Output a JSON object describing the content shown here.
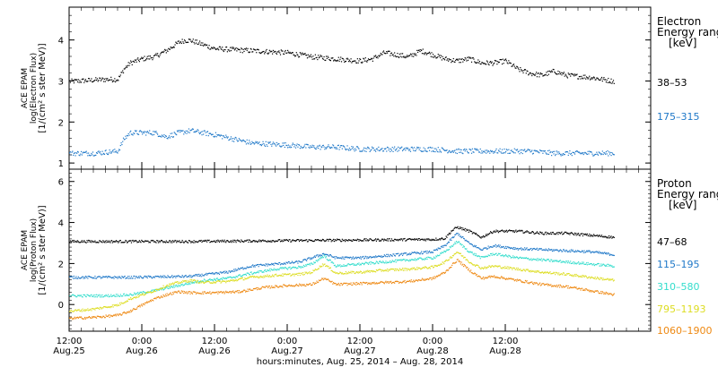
{
  "chart_data": [
    {
      "type": "scatter",
      "panel": "electron",
      "ylabel_lines": [
        "ACE EPAM",
        "log(Electron Flux)",
        "[1/(cm² s ster MeV)]"
      ],
      "ylim": [
        0.85,
        4.8
      ],
      "yticks": [
        1,
        2,
        3,
        4
      ],
      "legend_title_lines": [
        "Electron",
        "Energy ranges",
        "[keV]"
      ],
      "series": [
        {
          "name": "38–53",
          "color": "#000000",
          "points": [
            [
              0,
              3.0
            ],
            [
              6,
              3.05
            ],
            [
              8,
              3.05
            ],
            [
              9,
              3.3
            ],
            [
              10,
              3.45
            ],
            [
              12,
              3.55
            ],
            [
              14,
              3.6
            ],
            [
              16,
              3.75
            ],
            [
              18,
              3.95
            ],
            [
              19,
              4.0
            ],
            [
              20,
              4.0
            ],
            [
              24,
              3.8
            ],
            [
              30,
              3.75
            ],
            [
              36,
              3.7
            ],
            [
              40,
              3.6
            ],
            [
              44,
              3.55
            ],
            [
              48,
              3.5
            ],
            [
              50,
              3.55
            ],
            [
              52,
              3.7
            ],
            [
              54,
              3.65
            ],
            [
              56,
              3.6
            ],
            [
              58,
              3.75
            ],
            [
              60,
              3.65
            ],
            [
              62,
              3.55
            ],
            [
              64,
              3.5
            ],
            [
              66,
              3.55
            ],
            [
              68,
              3.45
            ],
            [
              70,
              3.45
            ],
            [
              72,
              3.5
            ],
            [
              74,
              3.3
            ],
            [
              76,
              3.2
            ],
            [
              78,
              3.15
            ],
            [
              80,
              3.25
            ],
            [
              82,
              3.15
            ],
            [
              86,
              3.1
            ],
            [
              90,
              3.0
            ]
          ]
        },
        {
          "name": "175–315",
          "color": "#1f78c8",
          "points": [
            [
              0,
              1.25
            ],
            [
              4,
              1.25
            ],
            [
              8,
              1.3
            ],
            [
              9,
              1.6
            ],
            [
              10,
              1.75
            ],
            [
              14,
              1.75
            ],
            [
              16,
              1.65
            ],
            [
              18,
              1.75
            ],
            [
              20,
              1.8
            ],
            [
              24,
              1.7
            ],
            [
              30,
              1.5
            ],
            [
              36,
              1.45
            ],
            [
              40,
              1.4
            ],
            [
              44,
              1.4
            ],
            [
              48,
              1.35
            ],
            [
              52,
              1.35
            ],
            [
              56,
              1.35
            ],
            [
              60,
              1.35
            ],
            [
              64,
              1.3
            ],
            [
              68,
              1.3
            ],
            [
              72,
              1.3
            ],
            [
              76,
              1.3
            ],
            [
              80,
              1.25
            ],
            [
              84,
              1.25
            ],
            [
              90,
              1.25
            ]
          ]
        }
      ]
    },
    {
      "type": "scatter",
      "panel": "proton",
      "ylabel_lines": [
        "ACE EPAM",
        "log(Proton Flux)",
        "[1/(cm² s ster MeV)]"
      ],
      "ylim": [
        -1.3,
        6.6
      ],
      "yticks": [
        0,
        2,
        4,
        6
      ],
      "legend_title_lines": [
        "Proton",
        "Energy ranges",
        "[keV]"
      ],
      "series": [
        {
          "name": "47–68",
          "color": "#000000",
          "points": [
            [
              0,
              3.1
            ],
            [
              20,
              3.1
            ],
            [
              40,
              3.15
            ],
            [
              60,
              3.2
            ],
            [
              62,
              3.25
            ],
            [
              63,
              3.6
            ],
            [
              64,
              3.8
            ],
            [
              66,
              3.6
            ],
            [
              68,
              3.3
            ],
            [
              70,
              3.6
            ],
            [
              74,
              3.6
            ],
            [
              78,
              3.5
            ],
            [
              82,
              3.5
            ],
            [
              86,
              3.4
            ],
            [
              90,
              3.3
            ]
          ]
        },
        {
          "name": "115–195",
          "color": "#1f78c8",
          "points": [
            [
              0,
              1.35
            ],
            [
              10,
              1.35
            ],
            [
              20,
              1.4
            ],
            [
              26,
              1.6
            ],
            [
              30,
              1.9
            ],
            [
              34,
              2.0
            ],
            [
              38,
              2.1
            ],
            [
              40,
              2.3
            ],
            [
              42,
              2.5
            ],
            [
              44,
              2.3
            ],
            [
              48,
              2.3
            ],
            [
              52,
              2.4
            ],
            [
              56,
              2.5
            ],
            [
              60,
              2.6
            ],
            [
              62,
              2.9
            ],
            [
              64,
              3.5
            ],
            [
              66,
              3.0
            ],
            [
              68,
              2.7
            ],
            [
              70,
              2.9
            ],
            [
              74,
              2.75
            ],
            [
              78,
              2.7
            ],
            [
              82,
              2.65
            ],
            [
              86,
              2.6
            ],
            [
              90,
              2.45
            ]
          ]
        },
        {
          "name": "310–580",
          "color": "#33ddcc",
          "points": [
            [
              0,
              0.45
            ],
            [
              6,
              0.45
            ],
            [
              10,
              0.5
            ],
            [
              14,
              0.7
            ],
            [
              18,
              0.95
            ],
            [
              22,
              1.2
            ],
            [
              26,
              1.3
            ],
            [
              30,
              1.55
            ],
            [
              34,
              1.75
            ],
            [
              38,
              1.85
            ],
            [
              40,
              2.0
            ],
            [
              42,
              2.4
            ],
            [
              44,
              1.9
            ],
            [
              48,
              2.0
            ],
            [
              52,
              2.1
            ],
            [
              56,
              2.2
            ],
            [
              60,
              2.3
            ],
            [
              62,
              2.6
            ],
            [
              64,
              3.1
            ],
            [
              66,
              2.6
            ],
            [
              68,
              2.3
            ],
            [
              70,
              2.5
            ],
            [
              74,
              2.3
            ],
            [
              78,
              2.2
            ],
            [
              82,
              2.1
            ],
            [
              86,
              2.0
            ],
            [
              90,
              1.9
            ]
          ]
        },
        {
          "name": "795–1193",
          "color": "#dddd22",
          "points": [
            [
              0,
              -0.3
            ],
            [
              4,
              -0.2
            ],
            [
              8,
              0.0
            ],
            [
              10,
              0.3
            ],
            [
              12,
              0.5
            ],
            [
              14,
              0.7
            ],
            [
              16,
              0.95
            ],
            [
              18,
              1.1
            ],
            [
              20,
              1.2
            ],
            [
              22,
              1.1
            ],
            [
              26,
              1.15
            ],
            [
              30,
              1.35
            ],
            [
              34,
              1.45
            ],
            [
              38,
              1.5
            ],
            [
              40,
              1.6
            ],
            [
              42,
              2.0
            ],
            [
              44,
              1.55
            ],
            [
              48,
              1.6
            ],
            [
              52,
              1.7
            ],
            [
              56,
              1.75
            ],
            [
              60,
              1.85
            ],
            [
              62,
              2.1
            ],
            [
              64,
              2.6
            ],
            [
              66,
              2.1
            ],
            [
              68,
              1.8
            ],
            [
              70,
              1.9
            ],
            [
              74,
              1.75
            ],
            [
              78,
              1.6
            ],
            [
              82,
              1.5
            ],
            [
              86,
              1.35
            ],
            [
              90,
              1.2
            ]
          ]
        },
        {
          "name": "1060–1900",
          "color": "#ee8811",
          "points": [
            [
              0,
              -0.65
            ],
            [
              4,
              -0.6
            ],
            [
              8,
              -0.5
            ],
            [
              10,
              -0.3
            ],
            [
              12,
              0.0
            ],
            [
              14,
              0.3
            ],
            [
              16,
              0.5
            ],
            [
              18,
              0.65
            ],
            [
              20,
              0.6
            ],
            [
              24,
              0.6
            ],
            [
              28,
              0.65
            ],
            [
              32,
              0.85
            ],
            [
              36,
              0.95
            ],
            [
              40,
              1.0
            ],
            [
              42,
              1.3
            ],
            [
              44,
              1.0
            ],
            [
              48,
              1.05
            ],
            [
              52,
              1.1
            ],
            [
              56,
              1.15
            ],
            [
              60,
              1.3
            ],
            [
              62,
              1.6
            ],
            [
              64,
              2.2
            ],
            [
              66,
              1.7
            ],
            [
              68,
              1.3
            ],
            [
              70,
              1.4
            ],
            [
              74,
              1.2
            ],
            [
              78,
              1.0
            ],
            [
              82,
              0.9
            ],
            [
              86,
              0.7
            ],
            [
              90,
              0.5
            ]
          ]
        }
      ]
    }
  ],
  "x_axis": {
    "range_hours": [
      0,
      96
    ],
    "ticks": [
      {
        "x": 0,
        "time": "12:00",
        "date": "Aug.25"
      },
      {
        "x": 12,
        "time": "0:00",
        "date": "Aug.26"
      },
      {
        "x": 24,
        "time": "12:00",
        "date": "Aug.26"
      },
      {
        "x": 36,
        "time": "0:00",
        "date": "Aug.27"
      },
      {
        "x": 48,
        "time": "12:00",
        "date": "Aug.27"
      },
      {
        "x": 60,
        "time": "0:00",
        "date": "Aug.28"
      },
      {
        "x": 72,
        "time": "12:00",
        "date": "Aug.28"
      }
    ],
    "label": "hours:minutes, Aug. 25, 2014 – Aug. 28, 2014"
  },
  "overflow_legend_letters": [
    "ran",
    "ran"
  ]
}
